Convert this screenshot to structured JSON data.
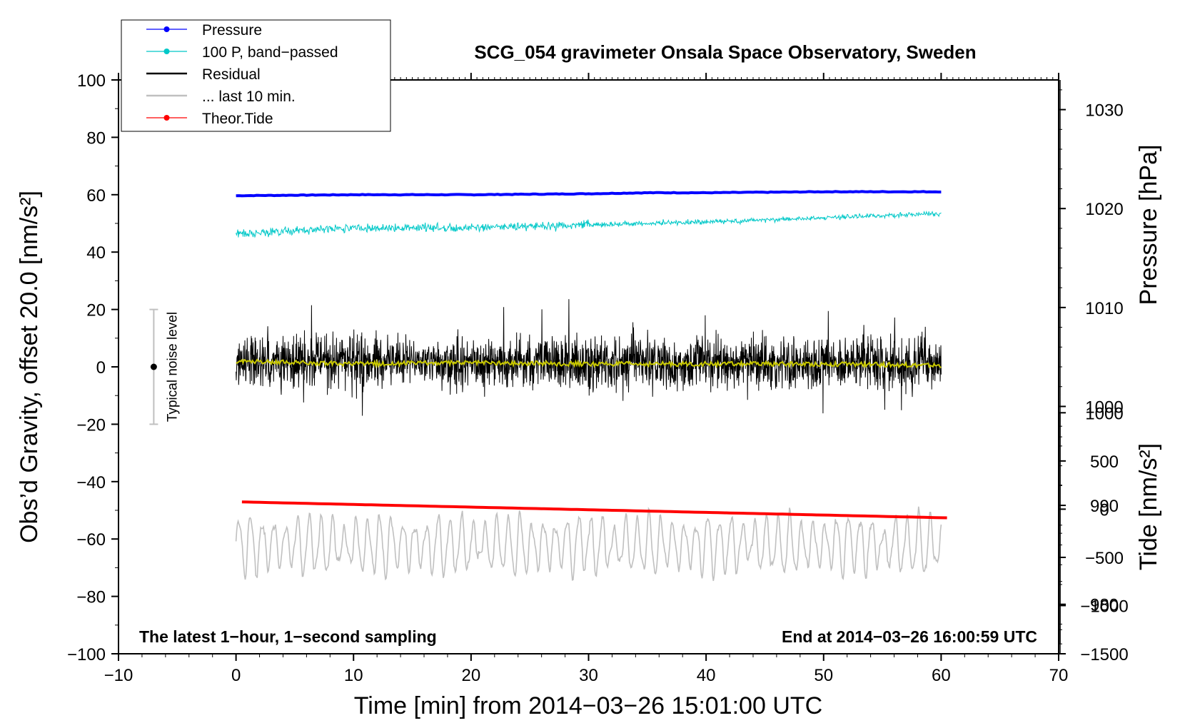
{
  "chart_data": {
    "type": "line",
    "title": "SCG_054 gravimeter Onsala Space Observatory, Sweden",
    "xlabel": "Time [min] from 2014−03−26 15:01:00 UTC",
    "ylabel_left": "Obs’d Gravity, offset 20.0 [nm/s²]",
    "ylabel_right_top": "Pressure [hPa]",
    "ylabel_right_bottom": "Tide [nm/s²]",
    "xlim": [
      -10,
      70
    ],
    "ylim": [
      -100,
      100
    ],
    "pressure_axis_range": [
      975,
      1033
    ],
    "tide_axis_range": [
      -1500,
      1000
    ],
    "x_ticks": [
      -10,
      0,
      10,
      20,
      30,
      40,
      50,
      60,
      70
    ],
    "x_tick_labels": [
      "−10",
      "0",
      "10",
      "20",
      "30",
      "40",
      "50",
      "60",
      "70"
    ],
    "y_ticks": [
      -100,
      -80,
      -60,
      -40,
      -20,
      0,
      20,
      40,
      60,
      80,
      100
    ],
    "y_tick_labels": [
      "−100",
      "−80",
      "−60",
      "−40",
      "−20",
      "0",
      "20",
      "40",
      "60",
      "80",
      "100"
    ],
    "pressure_ticks": [
      980,
      990,
      1000,
      1010,
      1020,
      1030
    ],
    "pressure_tick_labels": [
      "980",
      "990",
      "1000",
      "1010",
      "1020",
      "1030"
    ],
    "tide_ticks": [
      -1500,
      -1000,
      -500,
      0,
      500,
      1000
    ],
    "tide_tick_labels": [
      "−1500",
      "−1000",
      "−500",
      "0",
      "500",
      "1000"
    ],
    "series": [
      {
        "name": "Pressure",
        "color": "#0000ff",
        "axis": "pressure",
        "x": [
          0,
          10,
          20,
          30,
          35,
          40,
          50,
          60
        ],
        "values": [
          1021.3,
          1021.4,
          1021.4,
          1021.5,
          1021.6,
          1021.6,
          1021.7,
          1021.7
        ]
      },
      {
        "name": "100 P, band−passed",
        "color": "#00c8c8",
        "axis": "gravity",
        "x": [
          0,
          10,
          20,
          30,
          40,
          50,
          60
        ],
        "values": [
          46.5,
          48.5,
          48.5,
          49.5,
          50.5,
          52.0,
          53.5
        ],
        "noise_amplitude": 1.0
      },
      {
        "name": "Residual",
        "color": "#000000",
        "axis": "gravity",
        "x": [
          0,
          60
        ],
        "values": [
          2,
          1
        ],
        "min": -21,
        "max": 25,
        "typical_spread": 8
      },
      {
        "name": "... last 10 min.",
        "color": "#c0c0c0",
        "axis": "gravity",
        "x": [
          0,
          60
        ],
        "values": [
          -62,
          -62
        ],
        "min": -82,
        "max": -43
      },
      {
        "name": "Theor.Tide",
        "color": "#ff0000",
        "axis": "tide",
        "x": [
          0.5,
          60.5
        ],
        "values": [
          75,
          -90
        ]
      },
      {
        "name": "smoothed residual",
        "color": "#c8c800",
        "axis": "gravity",
        "x": [
          0,
          10,
          20,
          30,
          40,
          50,
          60
        ],
        "values": [
          2,
          1,
          1.5,
          1,
          1,
          1,
          0.5
        ]
      }
    ],
    "noise_bar": {
      "label": "Typical noise level",
      "x": -7,
      "center": 0,
      "low": -20,
      "high": 20
    },
    "annotations": [
      {
        "text": "The latest 1−hour, 1−second sampling",
        "position": "bottom-left"
      },
      {
        "text": "End at 2014−03−26 16:00:59 UTC",
        "position": "bottom-right"
      }
    ],
    "legend": {
      "position": "top-left",
      "entries": [
        {
          "label": "Pressure",
          "color": "#0000ff",
          "marker": "dot"
        },
        {
          "label": "100 P, band−passed",
          "color": "#00c8c8",
          "marker": "dot"
        },
        {
          "label": "Residual",
          "color": "#000000",
          "marker": "none"
        },
        {
          "label": "... last 10 min.",
          "color": "#c0c0c0",
          "marker": "none"
        },
        {
          "label": "Theor.Tide",
          "color": "#ff0000",
          "marker": "dot"
        }
      ]
    }
  }
}
